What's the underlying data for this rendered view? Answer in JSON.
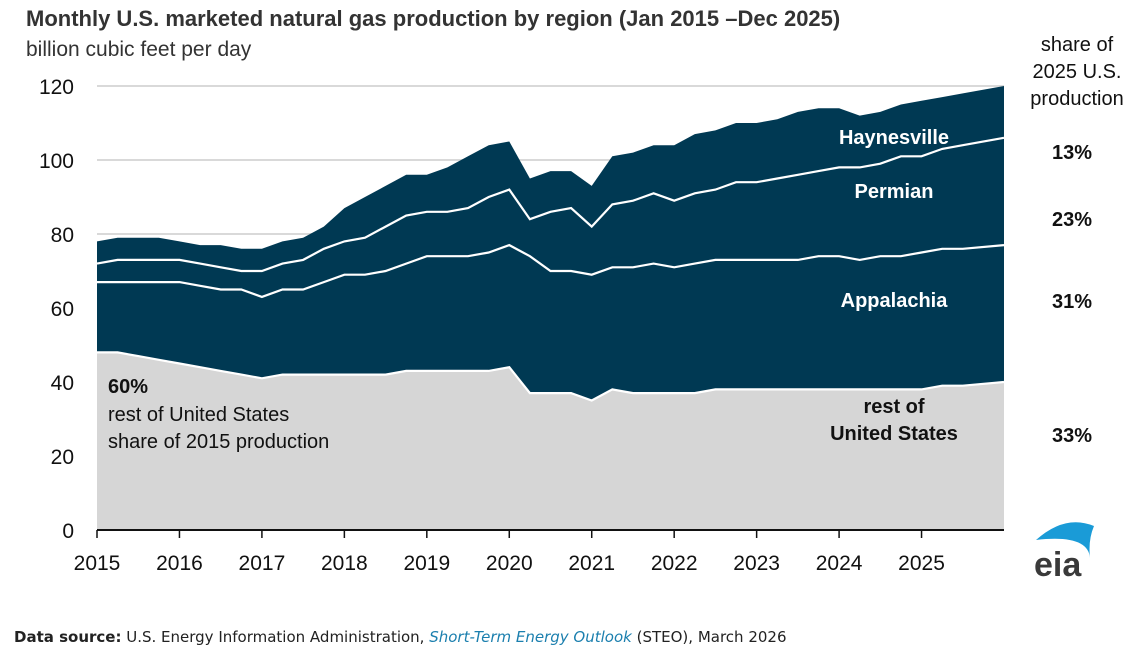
{
  "header": {
    "title": "Monthly U.S. marketed natural gas production by region (Jan 2015 –Dec 2025)",
    "subtitle": "billion cubic feet per day",
    "share_heading_lines": [
      "share of",
      "2025 U.S.",
      "production"
    ]
  },
  "chart_data": {
    "type": "area",
    "stacked": true,
    "title": "Monthly U.S. marketed natural gas production by region (Jan 2015 –Dec 2025)",
    "ylabel": "billion cubic feet per day",
    "xlabel": "",
    "ylim": [
      0,
      120
    ],
    "xlim": [
      2015.0,
      2026.0
    ],
    "y_ticks": [
      "0",
      "20",
      "40",
      "60",
      "80",
      "100",
      "120"
    ],
    "x_ticks": [
      "2015",
      "2016",
      "2017",
      "2018",
      "2019",
      "2020",
      "2021",
      "2022",
      "2023",
      "2024",
      "2025"
    ],
    "grid": true,
    "x_resolution": "quarterly (approximated from monthly chart)",
    "x": [
      2015.0,
      2015.25,
      2015.5,
      2015.75,
      2016.0,
      2016.25,
      2016.5,
      2016.75,
      2017.0,
      2017.25,
      2017.5,
      2017.75,
      2018.0,
      2018.25,
      2018.5,
      2018.75,
      2019.0,
      2019.25,
      2019.5,
      2019.75,
      2020.0,
      2020.25,
      2020.5,
      2020.75,
      2021.0,
      2021.25,
      2021.5,
      2021.75,
      2022.0,
      2022.25,
      2022.5,
      2022.75,
      2023.0,
      2023.25,
      2023.5,
      2023.75,
      2024.0,
      2024.25,
      2024.5,
      2024.75,
      2025.0,
      2025.25,
      2025.5,
      2025.917
    ],
    "series": [
      {
        "name": "rest of United States",
        "color": "#d6d6d6",
        "values": [
          48,
          48,
          47,
          46,
          45,
          44,
          43,
          42,
          41,
          42,
          42,
          42,
          42,
          42,
          42,
          43,
          43,
          43,
          43,
          43,
          44,
          37,
          37,
          37,
          35,
          38,
          37,
          37,
          37,
          37,
          38,
          38,
          38,
          38,
          38,
          38,
          38,
          38,
          38,
          38,
          38,
          39,
          39,
          40
        ]
      },
      {
        "name": "Appalachia",
        "color": "#003953",
        "values": [
          19,
          19,
          20,
          21,
          22,
          22,
          22,
          23,
          22,
          23,
          23,
          25,
          27,
          27,
          28,
          29,
          31,
          31,
          31,
          32,
          33,
          37,
          33,
          33,
          34,
          33,
          34,
          35,
          34,
          35,
          35,
          35,
          35,
          35,
          35,
          36,
          36,
          35,
          36,
          36,
          37,
          37,
          37,
          37
        ]
      },
      {
        "name": "Permian",
        "color": "#003953",
        "values": [
          5,
          6,
          6,
          6,
          6,
          6,
          6,
          5,
          7,
          7,
          8,
          9,
          9,
          10,
          12,
          13,
          12,
          12,
          13,
          15,
          15,
          10,
          16,
          17,
          13,
          17,
          18,
          19,
          18,
          19,
          19,
          21,
          21,
          22,
          23,
          23,
          24,
          25,
          25,
          27,
          26,
          27,
          28,
          29
        ]
      },
      {
        "name": "Haynesville",
        "color": "#003953",
        "values": [
          6,
          6,
          6,
          6,
          5,
          5,
          6,
          6,
          6,
          6,
          6,
          6,
          9,
          11,
          11,
          11,
          10,
          12,
          14,
          14,
          13,
          11,
          11,
          10,
          11,
          13,
          13,
          13,
          15,
          16,
          16,
          16,
          16,
          16,
          17,
          17,
          16,
          14,
          14,
          14,
          15,
          14,
          14,
          14
        ]
      }
    ],
    "region_labels": {
      "haynesville": "Haynesville",
      "permian": "Permian",
      "appalachia": "Appalachia",
      "rest_line1": "rest of",
      "rest_line2": "United States"
    },
    "shares_2025": [
      {
        "region": "Haynesville",
        "label": "13%"
      },
      {
        "region": "Permian",
        "label": "23%"
      },
      {
        "region": "Appalachia",
        "label": "31%"
      },
      {
        "region": "rest of United States",
        "label": "33%"
      }
    ],
    "annotation_2015": {
      "value": "60%",
      "line1": "rest of United States",
      "line2": "share of 2015 production"
    }
  },
  "footer": {
    "source_label": "Data source:",
    "source_text_1": " U.S. Energy Information Administration, ",
    "source_link": "Short-Term Energy Outlook",
    "source_text_2": " (STEO), March 2026",
    "logo_text": "eia"
  }
}
